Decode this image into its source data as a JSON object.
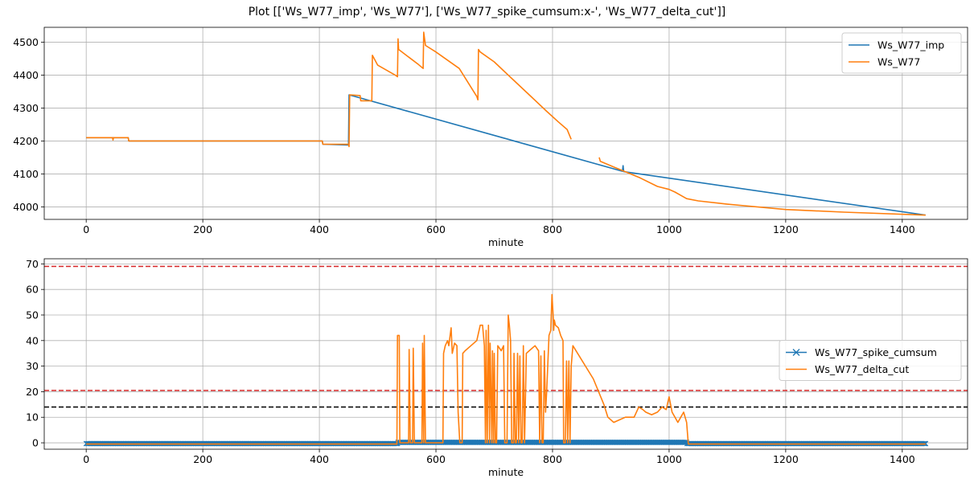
{
  "figure": {
    "title": "Plot [['Ws_W77_imp', 'Ws_W77'], ['Ws_W77_spike_cumsum:x-', 'Ws_W77_delta_cut']]"
  },
  "colors": {
    "blue": "#1f77b4",
    "orange": "#ff7f0e",
    "red": "#d62728",
    "black": "#000000",
    "grid": "#b0b0b0"
  },
  "chart_data": [
    {
      "type": "line",
      "xlabel": "minute",
      "ylabel": "",
      "xlim": [
        -72,
        1512
      ],
      "ylim": [
        3962,
        4545
      ],
      "xticks": [
        0,
        200,
        400,
        600,
        800,
        1000,
        1200,
        1400
      ],
      "yticks": [
        4000,
        4100,
        4200,
        4300,
        4400,
        4500
      ],
      "grid": true,
      "legend": "top-right",
      "series": [
        {
          "name": "Ws_W77_imp",
          "color": "blue",
          "points": [
            [
              0,
              4210
            ],
            [
              72,
              4210
            ],
            [
              73,
              4200
            ],
            [
              405,
              4200
            ],
            [
              406,
              4190
            ],
            [
              450,
              4188
            ],
            [
              451,
              4340
            ],
            [
              920,
              4108
            ],
            [
              921,
              4125
            ],
            [
              922,
              4107
            ],
            [
              1440,
              3975
            ]
          ]
        },
        {
          "name": "Ws_W77",
          "color": "orange",
          "points": [
            [
              0,
              4210
            ],
            [
              45,
              4210
            ],
            [
              46,
              4203
            ],
            [
              47,
              4210
            ],
            [
              72,
              4210
            ],
            [
              73,
              4200
            ],
            [
              405,
              4200
            ],
            [
              406,
              4190
            ],
            [
              450,
              4190
            ],
            [
              451,
              4183
            ],
            [
              452,
              4340
            ],
            [
              470,
              4338
            ],
            [
              471,
              4322
            ],
            [
              490,
              4322
            ],
            [
              491,
              4460
            ],
            [
              500,
              4430
            ],
            [
              530,
              4400
            ],
            [
              534,
              4395
            ],
            [
              535,
              4510
            ],
            [
              536,
              4478
            ],
            [
              570,
              4432
            ],
            [
              578,
              4420
            ],
            [
              579,
              4530
            ],
            [
              582,
              4490
            ],
            [
              600,
              4470
            ],
            [
              640,
              4420
            ],
            [
              670,
              4335
            ],
            [
              672,
              4325
            ],
            [
              673,
              4478
            ],
            [
              676,
              4470
            ],
            [
              700,
              4440
            ],
            [
              730,
              4390
            ],
            [
              760,
              4340
            ],
            [
              790,
              4290
            ],
            [
              810,
              4258
            ],
            [
              825,
              4235
            ],
            [
              832,
              4205
            ],
            [
              null,
              null
            ],
            [
              880,
              4150
            ],
            [
              882,
              4138
            ],
            [
              920,
              4110
            ],
            [
              950,
              4088
            ],
            [
              980,
              4062
            ],
            [
              1000,
              4053
            ],
            [
              1010,
              4045
            ],
            [
              1020,
              4035
            ],
            [
              1030,
              4025
            ],
            [
              1050,
              4018
            ],
            [
              1100,
              4008
            ],
            [
              1200,
              3992
            ],
            [
              1300,
              3984
            ],
            [
              1440,
              3975
            ]
          ]
        }
      ]
    },
    {
      "type": "line",
      "xlabel": "minute",
      "ylabel": "",
      "xlim": [
        -72,
        1512
      ],
      "ylim": [
        -2.5,
        72
      ],
      "xticks": [
        0,
        200,
        400,
        600,
        800,
        1000,
        1200,
        1400
      ],
      "yticks": [
        0,
        10,
        20,
        30,
        40,
        50,
        60,
        70
      ],
      "grid": true,
      "legend": "center-right",
      "hlines": [
        {
          "y": 69,
          "color": "red",
          "style": "dashed"
        },
        {
          "y": 20.5,
          "color": "red",
          "style": "dashed"
        },
        {
          "y": 14,
          "color": "black",
          "style": "dashed"
        }
      ],
      "series": [
        {
          "name": "Ws_W77_spike_cumsum",
          "color": "blue",
          "marker": "x",
          "points": [
            [
              0,
              -0.3
            ],
            [
              534,
              -0.3
            ],
            [
              535,
              0.2
            ],
            [
              1030,
              0.2
            ],
            [
              1031,
              -0.3
            ],
            [
              1440,
              -0.3
            ]
          ]
        },
        {
          "name": "Ws_W77_delta_cut",
          "color": "orange",
          "points": [
            [
              0,
              -0.5
            ],
            [
              533,
              -0.5
            ],
            [
              534,
              42
            ],
            [
              537,
              42
            ],
            [
              538,
              0
            ],
            [
              553,
              0
            ],
            [
              554,
              36.5
            ],
            [
              556,
              0
            ],
            [
              560,
              0
            ],
            [
              561,
              37
            ],
            [
              563,
              0
            ],
            [
              576,
              0
            ],
            [
              577,
              39
            ],
            [
              579,
              0
            ],
            [
              580,
              42
            ],
            [
              582,
              0
            ],
            [
              612,
              0
            ],
            [
              613,
              35
            ],
            [
              616,
              38
            ],
            [
              620,
              40
            ],
            [
              622,
              38
            ],
            [
              626,
              45
            ],
            [
              628,
              35
            ],
            [
              632,
              39
            ],
            [
              636,
              38
            ],
            [
              638,
              12
            ],
            [
              641,
              0
            ],
            [
              645,
              0
            ],
            [
              646,
              35
            ],
            [
              650,
              36
            ],
            [
              660,
              38
            ],
            [
              670,
              40
            ],
            [
              676,
              46
            ],
            [
              680,
              46
            ],
            [
              683,
              38
            ],
            [
              685,
              0
            ],
            [
              686,
              44
            ],
            [
              688,
              0
            ],
            [
              690,
              46
            ],
            [
              692,
              0
            ],
            [
              693,
              39
            ],
            [
              696,
              0
            ],
            [
              697,
              36
            ],
            [
              699,
              0
            ],
            [
              700,
              35
            ],
            [
              702,
              0
            ],
            [
              704,
              0
            ],
            [
              706,
              38
            ],
            [
              712,
              36
            ],
            [
              716,
              38
            ],
            [
              718,
              0
            ],
            [
              722,
              0
            ],
            [
              724,
              50
            ],
            [
              726,
              46
            ],
            [
              728,
              40
            ],
            [
              730,
              0
            ],
            [
              733,
              0
            ],
            [
              734,
              35
            ],
            [
              736,
              0
            ],
            [
              738,
              0
            ],
            [
              740,
              35
            ],
            [
              742,
              0
            ],
            [
              744,
              34
            ],
            [
              746,
              0
            ],
            [
              748,
              0
            ],
            [
              750,
              38
            ],
            [
              752,
              0
            ],
            [
              755,
              35
            ],
            [
              760,
              36
            ],
            [
              770,
              38
            ],
            [
              776,
              36
            ],
            [
              778,
              0
            ],
            [
              780,
              34
            ],
            [
              782,
              0
            ],
            [
              784,
              0
            ],
            [
              786,
              36
            ],
            [
              788,
              12
            ],
            [
              790,
              20
            ],
            [
              794,
              42
            ],
            [
              797,
              44
            ],
            [
              799,
              58
            ],
            [
              801,
              50
            ],
            [
              802,
              44
            ],
            [
              803,
              48
            ],
            [
              805,
              46
            ],
            [
              810,
              45
            ],
            [
              814,
              42
            ],
            [
              818,
              40
            ],
            [
              819,
              0
            ],
            [
              822,
              0
            ],
            [
              824,
              32
            ],
            [
              826,
              0
            ],
            [
              828,
              32
            ],
            [
              830,
              0
            ],
            [
              832,
              30
            ],
            [
              835,
              38
            ],
            [
              870,
              25
            ],
            [
              888,
              15
            ],
            [
              895,
              10
            ],
            [
              905,
              8
            ],
            [
              915,
              9
            ],
            [
              925,
              10
            ],
            [
              932,
              10
            ],
            [
              940,
              10
            ],
            [
              948,
              14
            ],
            [
              955,
              13
            ],
            [
              960,
              12
            ],
            [
              970,
              11
            ],
            [
              980,
              12
            ],
            [
              988,
              14
            ],
            [
              995,
              13
            ],
            [
              1000,
              18
            ],
            [
              1005,
              12
            ],
            [
              1010,
              10
            ],
            [
              1015,
              8
            ],
            [
              1020,
              10
            ],
            [
              1025,
              12
            ],
            [
              1030,
              8
            ],
            [
              1033,
              -0.5
            ],
            [
              1440,
              -0.5
            ]
          ]
        }
      ]
    }
  ]
}
